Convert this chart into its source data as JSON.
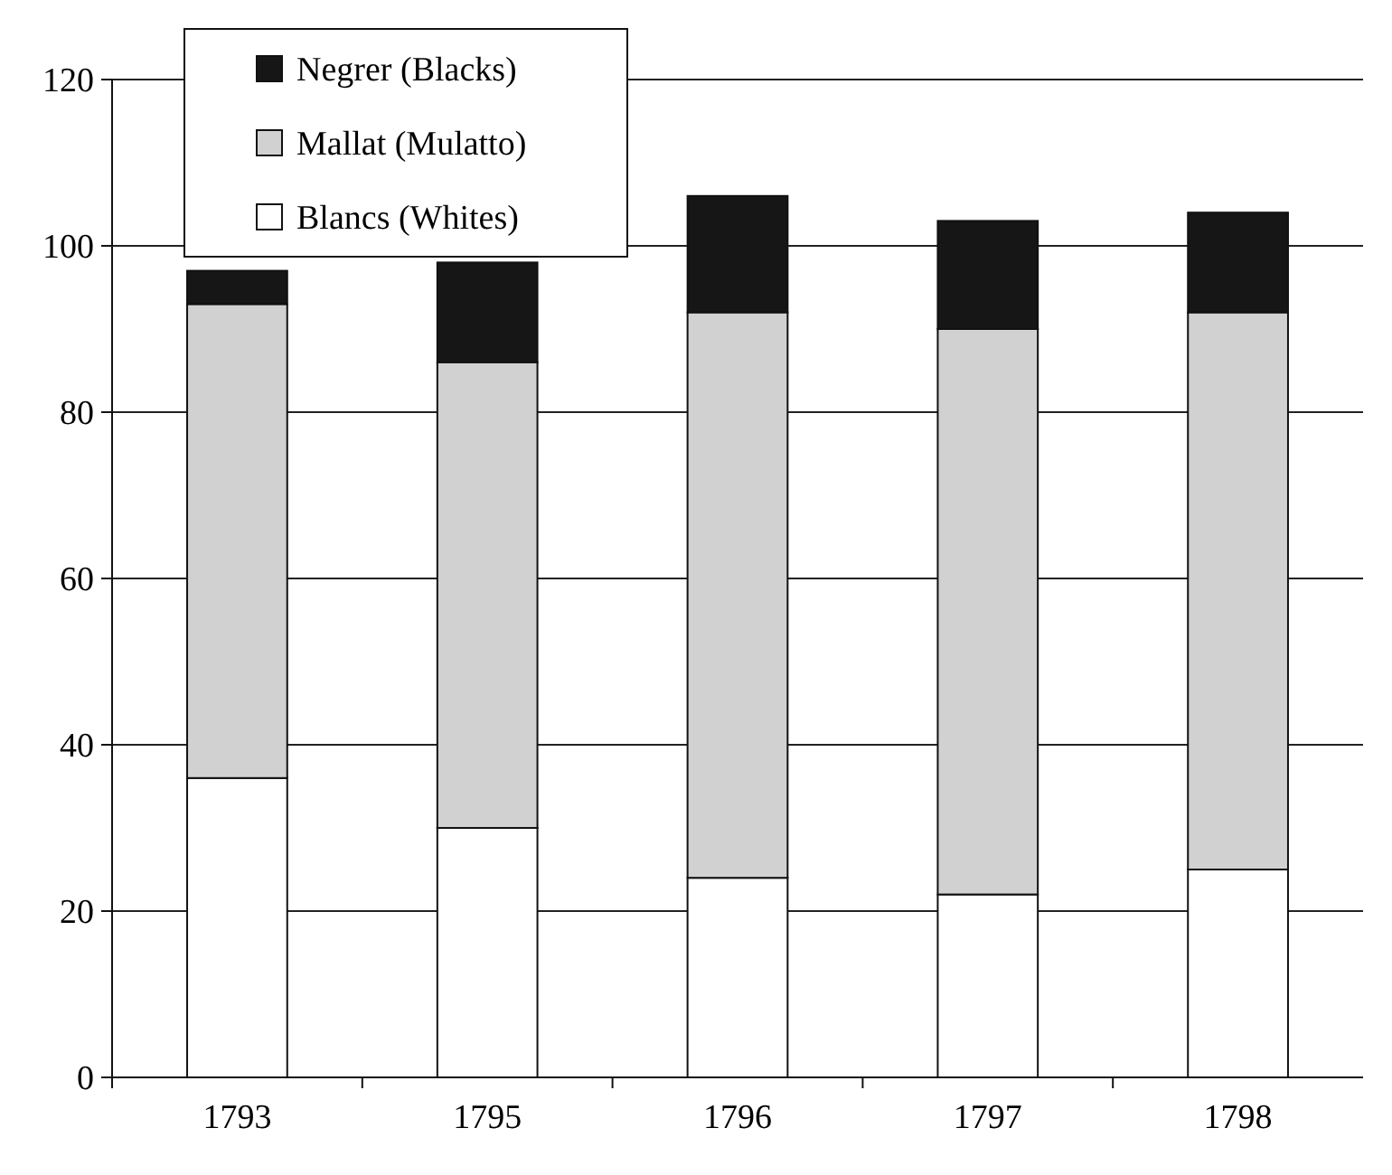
{
  "chart_data": {
    "type": "bar",
    "stacked": true,
    "categories": [
      "1793",
      "1795",
      "1796",
      "1797",
      "1798"
    ],
    "series": [
      {
        "name": "Blancs (Whites)",
        "color": "#ffffff",
        "values": [
          36,
          30,
          24,
          22,
          25
        ]
      },
      {
        "name": "Mallat (Mulatto)",
        "color": "#d0d1d0",
        "values": [
          57,
          56,
          68,
          68,
          67
        ]
      },
      {
        "name": "Negrer (Blacks)",
        "color": "#161616",
        "values": [
          4,
          12,
          14,
          13,
          12
        ]
      }
    ],
    "ylim": [
      0,
      120
    ],
    "yticks": [
      0,
      20,
      40,
      60,
      80,
      100,
      120
    ],
    "grid": "y",
    "legend": "top left"
  }
}
